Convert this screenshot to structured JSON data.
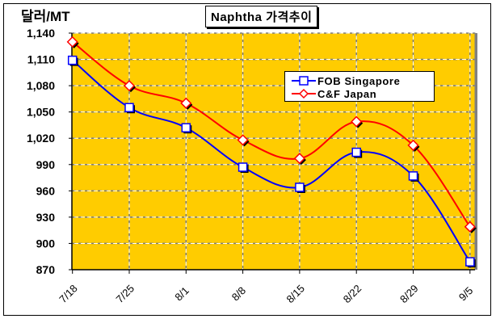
{
  "chart_data": {
    "type": "line",
    "title": "Naphtha 가격추이",
    "ylabel": "달러/MT",
    "xlabel": "",
    "categories": [
      "7/18",
      "7/25",
      "8/1",
      "8/8",
      "8/15",
      "8/22",
      "8/29",
      "9/5"
    ],
    "ylim": [
      870,
      1140
    ],
    "yticks": [
      870,
      900,
      930,
      960,
      990,
      1020,
      1050,
      1080,
      1110,
      1140
    ],
    "ytick_labels": [
      "870",
      "900",
      "930",
      "960",
      "990",
      "1,020",
      "1,050",
      "1,080",
      "1,110",
      "1,140"
    ],
    "grid": true,
    "legend_position": "top-right",
    "plot_background": "#FFCC00",
    "series": [
      {
        "name": "FOB Singapore",
        "color": "#0000FF",
        "marker": "square",
        "values": [
          1109,
          1055,
          1032,
          987,
          964,
          1004,
          977,
          879
        ]
      },
      {
        "name": "C&F Japan",
        "color": "#FF0000",
        "marker": "diamond",
        "values": [
          1130,
          1080,
          1060,
          1018,
          997,
          1039,
          1012,
          919
        ]
      }
    ]
  }
}
